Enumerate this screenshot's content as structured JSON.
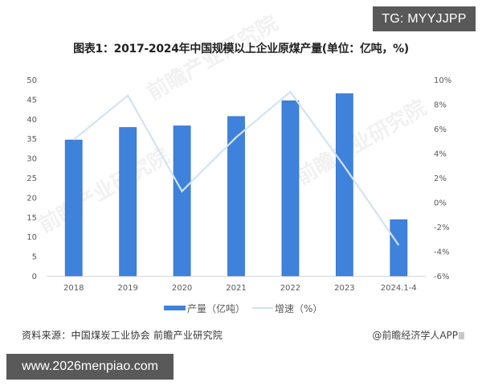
{
  "badges": {
    "tg": "TG: MYYJJPP",
    "site": "www.2026menpiao.com"
  },
  "header": {
    "title": "图表1：2017-2024年中国规模以上企业原煤产量(单位：亿吨，%)"
  },
  "footer": {
    "source": "资料来源：中国煤炭工业协会 前瞻产业研究院",
    "credit": "@前瞻经济学人APP"
  },
  "watermark": {
    "text": "前瞻产业研究院"
  },
  "colors": {
    "bar": "#3F82DC",
    "bar_edge": "#3A74C8",
    "line": "#D3E3F2",
    "axis": "#D9D9D9",
    "tick_text": "#595959"
  },
  "chart_data": {
    "type": "bar",
    "title": "图表1：2017-2024年中国规模以上企业原煤产量(单位：亿吨，%)",
    "xlabel": "",
    "ylabel": "产量（亿吨）",
    "ylabel_right": "增速（%）",
    "categories": [
      "2018",
      "2019",
      "2020",
      "2021",
      "2022",
      "2023",
      "2024.1-4"
    ],
    "series": [
      {
        "name": "产量（亿吨）",
        "type": "bar",
        "axis": "left",
        "values": [
          34.6,
          37.8,
          38.2,
          40.6,
          44.6,
          46.4,
          14.3
        ]
      },
      {
        "name": "增速（%）",
        "type": "line",
        "axis": "right",
        "values": [
          5.1,
          8.7,
          0.9,
          5.3,
          9.0,
          2.9,
          -3.5
        ]
      }
    ],
    "ylim": [
      0,
      50
    ],
    "yticks": [
      0,
      5,
      10,
      15,
      20,
      25,
      30,
      35,
      40,
      45,
      50
    ],
    "ylim_right": [
      -6,
      10
    ],
    "yticks_right": [
      "-6%",
      "-4%",
      "-2%",
      "0%",
      "2%",
      "4%",
      "6%",
      "8%",
      "10%"
    ],
    "yticks_right_values": [
      -6,
      -4,
      -2,
      0,
      2,
      4,
      6,
      8,
      10
    ],
    "grid": false,
    "legend": {
      "position": "bottom",
      "entries": [
        "产量（亿吨）",
        "增速（%）"
      ]
    }
  }
}
